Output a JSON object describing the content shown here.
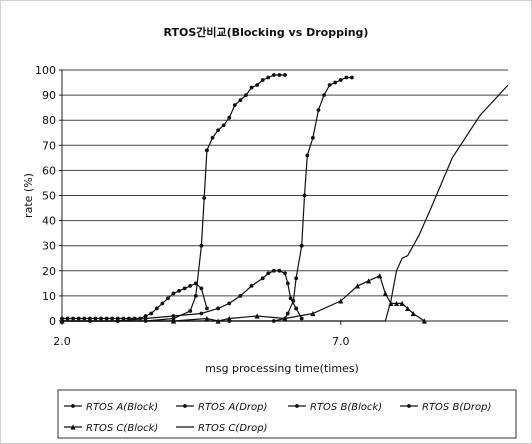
{
  "chart_data": {
    "type": "line",
    "title": "RTOS간비교(Blocking vs Dropping)",
    "xlabel": "msg processing time(times)",
    "ylabel": "rate (%)",
    "xlim": [
      2.0,
      10.0
    ],
    "ylim": [
      0,
      100
    ],
    "x_ticks": [
      {
        "value": 2.0,
        "label": "2.0"
      },
      {
        "value": 7.0,
        "label": "7.0"
      }
    ],
    "y_ticks": [
      0,
      10,
      20,
      30,
      40,
      50,
      60,
      70,
      80,
      90,
      100
    ],
    "grid": true,
    "legend_position": "bottom",
    "series": [
      {
        "name": "RTOS A(Block)",
        "marker": "dot",
        "x": [
          2.0,
          2.1,
          2.2,
          2.3,
          2.4,
          2.5,
          2.6,
          2.7,
          2.8,
          2.9,
          3.0,
          3.1,
          3.2,
          3.3,
          3.4,
          3.5,
          3.6,
          3.7,
          3.8,
          3.9,
          4.0,
          4.1,
          4.2,
          4.3,
          4.4,
          4.5,
          4.6
        ],
        "y": [
          1,
          1,
          1,
          1,
          1,
          1,
          1,
          1,
          1,
          1,
          1,
          1,
          1,
          1,
          1,
          2,
          3,
          5,
          7,
          9,
          11,
          12,
          13,
          14,
          15,
          13,
          5
        ]
      },
      {
        "name": "RTOS A(Drop)",
        "marker": "dot",
        "x": [
          2.0,
          2.5,
          3.0,
          3.5,
          4.0,
          4.3,
          4.4,
          4.5,
          4.55,
          4.6,
          4.7,
          4.8,
          4.9,
          5.0,
          5.1,
          5.2,
          5.3,
          5.4,
          5.5,
          5.6,
          5.7,
          5.8,
          5.9,
          6.0
        ],
        "y": [
          0,
          0,
          0,
          0,
          1,
          4,
          10,
          30,
          49,
          68,
          73,
          76,
          78,
          81,
          86,
          88,
          90,
          93,
          94,
          96,
          97,
          98,
          98,
          98
        ]
      },
      {
        "name": "RTOS B(Block)",
        "marker": "dot",
        "x": [
          2.0,
          3.0,
          3.5,
          4.0,
          4.5,
          4.8,
          5.0,
          5.2,
          5.4,
          5.6,
          5.7,
          5.8,
          5.9,
          6.0,
          6.05,
          6.1,
          6.2,
          6.3
        ],
        "y": [
          0,
          0,
          1,
          2,
          3,
          5,
          7,
          10,
          14,
          17,
          19,
          20,
          20,
          19,
          15,
          9,
          5,
          1
        ]
      },
      {
        "name": "RTOS B(Drop)",
        "marker": "dot",
        "x": [
          2.0,
          3.0,
          4.0,
          5.0,
          5.8,
          6.0,
          6.05,
          6.15,
          6.2,
          6.3,
          6.35,
          6.4,
          6.5,
          6.6,
          6.7,
          6.8,
          6.9,
          7.0,
          7.1,
          7.2
        ],
        "y": [
          0,
          0,
          0,
          0,
          0,
          1,
          3,
          8,
          17,
          30,
          50,
          66,
          73,
          84,
          90,
          94,
          95,
          96,
          97,
          97
        ]
      },
      {
        "name": "RTOS C(Block)",
        "marker": "triangle",
        "x": [
          2.0,
          4.0,
          4.6,
          4.8,
          5.0,
          5.5,
          6.0,
          6.5,
          7.0,
          7.3,
          7.5,
          7.7,
          7.8,
          7.9,
          8.0,
          8.1,
          8.2,
          8.3,
          8.5
        ],
        "y": [
          0,
          0,
          1,
          0,
          1,
          2,
          1,
          3,
          8,
          14,
          16,
          18,
          11,
          7,
          7,
          7,
          5,
          3,
          0
        ]
      },
      {
        "name": "RTOS C(Drop)",
        "marker": "none",
        "x": [
          2.0,
          5.0,
          7.0,
          7.8,
          7.9,
          8.0,
          8.1,
          8.2,
          8.3,
          8.4,
          8.6,
          9.0,
          9.5,
          10.0
        ],
        "y": [
          0,
          0,
          0,
          0,
          8,
          20,
          25,
          26,
          30,
          34,
          44,
          65,
          82,
          94
        ]
      }
    ]
  }
}
